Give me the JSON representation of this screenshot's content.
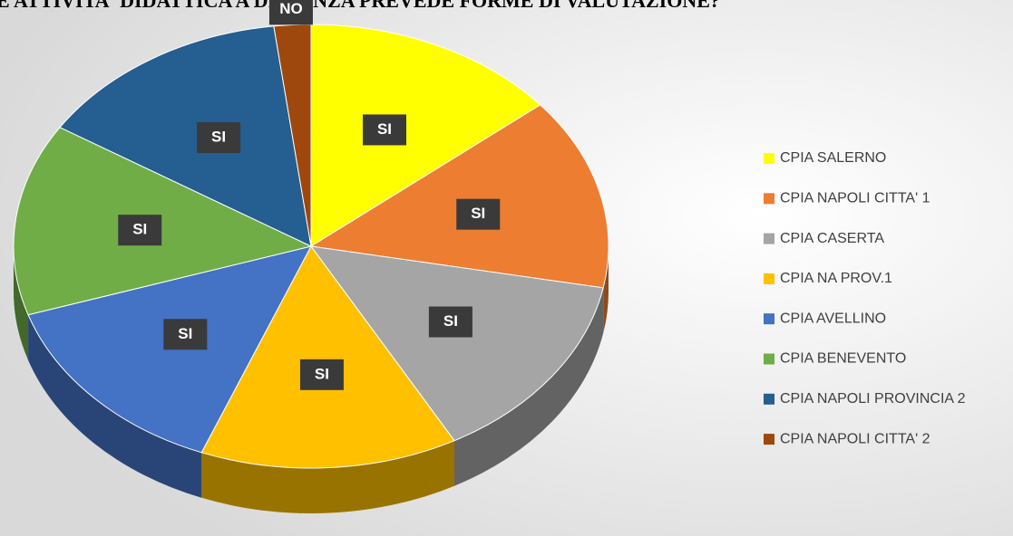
{
  "chart_data": {
    "type": "pie",
    "title": "E ATTIVITA' DIDATTICA A DISTANZA PREVEDE FORME DI VALUTAZIONE?",
    "categories": [
      "CPIA SALERNO",
      "CPIA NAPOLI CITTA' 1",
      "CPIA CASERTA",
      "CPIA NA PROV.1",
      "CPIA AVELLINO",
      "CPIA BENEVENTO",
      "CPIA NAPOLI PROVINCIA 2",
      "CPIA NAPOLI CITTA' 2"
    ],
    "values": [
      14,
      14,
      14,
      14,
      14,
      14,
      14,
      2
    ],
    "labels": [
      "SI",
      "SI",
      "SI",
      "SI",
      "SI",
      "SI",
      "SI",
      "NO"
    ],
    "colors": [
      "#ffff00",
      "#ed7d31",
      "#a5a5a5",
      "#ffc000",
      "#4472c4",
      "#70ad47",
      "#255e91",
      "#9e480e"
    ],
    "legend": "right"
  }
}
